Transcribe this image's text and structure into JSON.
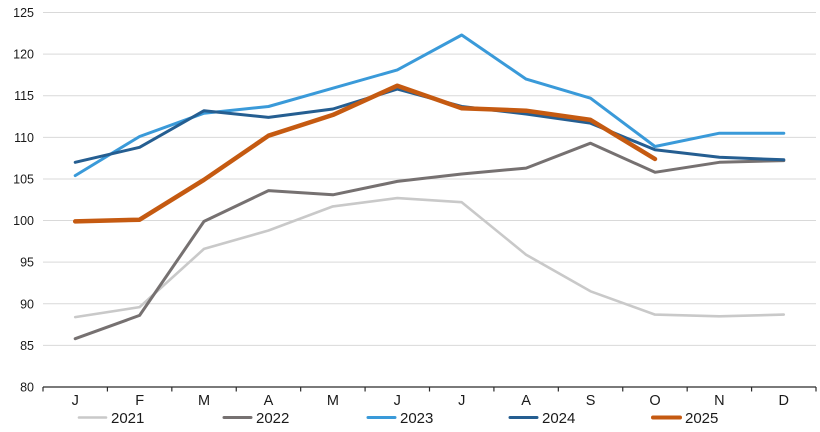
{
  "chart_data": {
    "type": "line",
    "title": "",
    "xlabel": "",
    "ylabel": "",
    "categories": [
      "J",
      "F",
      "M",
      "A",
      "M",
      "J",
      "J",
      "A",
      "S",
      "O",
      "N",
      "D"
    ],
    "ylim": [
      80,
      125
    ],
    "ytick_step": 5,
    "grid": "horizontal",
    "legend_position": "bottom",
    "series": [
      {
        "name": "2021",
        "color": "#c9c9c9",
        "width": 2.6,
        "values": [
          88.4,
          89.6,
          96.6,
          98.8,
          101.7,
          102.7,
          102.2,
          95.9,
          91.5,
          88.7,
          88.5,
          88.7
        ]
      },
      {
        "name": "2022",
        "color": "#767171",
        "width": 3,
        "values": [
          85.8,
          88.6,
          99.9,
          103.6,
          103.1,
          104.7,
          105.6,
          106.3,
          109.3,
          105.8,
          107.0,
          107.2
        ]
      },
      {
        "name": "2023",
        "color": "#3a9ad9",
        "width": 3,
        "values": [
          105.4,
          110.1,
          112.9,
          113.7,
          115.9,
          118.1,
          122.3,
          117.0,
          114.7,
          108.9,
          110.5,
          110.5
        ]
      },
      {
        "name": "2024",
        "color": "#255e91",
        "width": 3,
        "values": [
          107.0,
          108.8,
          113.2,
          112.4,
          113.4,
          115.8,
          113.7,
          112.8,
          111.7,
          108.5,
          107.6,
          107.3
        ]
      },
      {
        "name": "2025",
        "color": "#c55a11",
        "width": 4.5,
        "values": [
          99.9,
          100.1,
          104.9,
          110.2,
          112.7,
          116.2,
          113.5,
          113.2,
          112.1,
          107.4,
          null,
          null
        ]
      }
    ]
  },
  "theme": {
    "grid_color": "#d9d9d9",
    "axis_color": "#2b2b2b",
    "text_color": "#1a1a1a",
    "background": "#ffffff"
  }
}
